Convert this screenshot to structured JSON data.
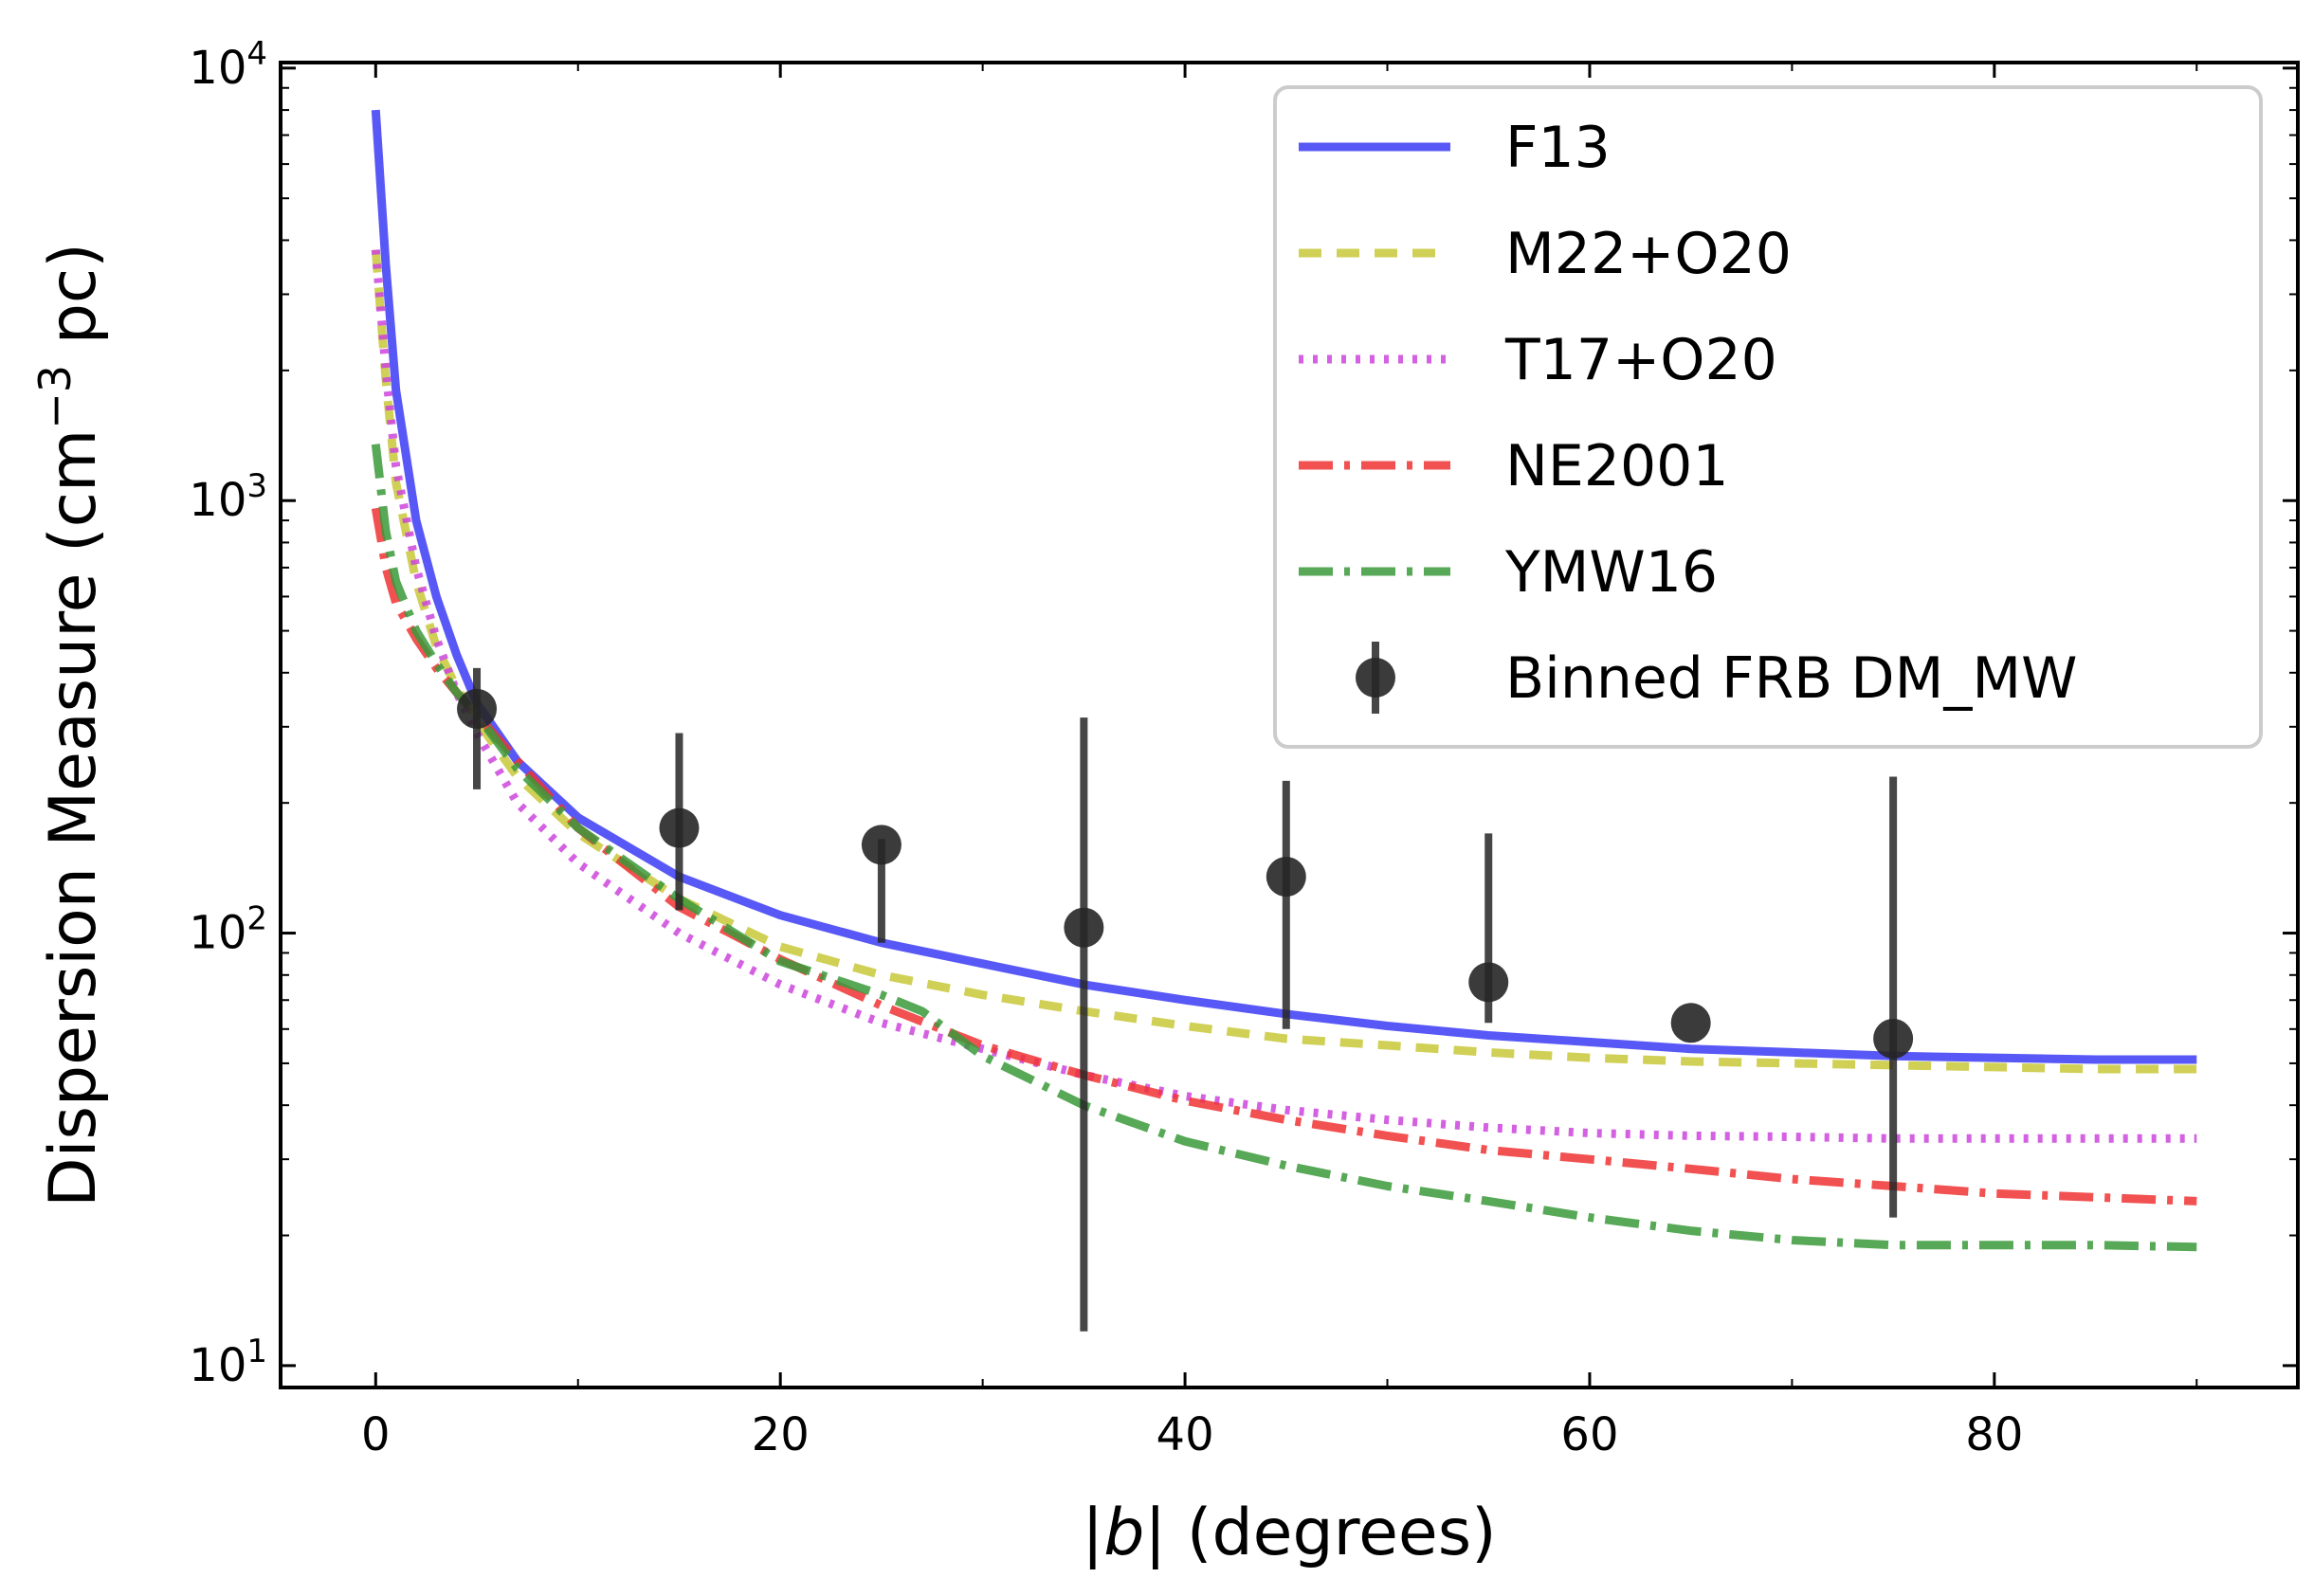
{
  "chart_data": {
    "type": "line",
    "title": "",
    "xlabel_prefix": "|",
    "xlabel_var": "b",
    "xlabel_suffix": "| (degrees)",
    "ylabel_main": "Dispersion Measure (cm",
    "ylabel_sup": "−3",
    "ylabel_tail": " pc)",
    "yscale": "log",
    "xlim": [
      -4.7,
      95
    ],
    "ylim": [
      8.9,
      10300
    ],
    "grid": false,
    "legend_position": "top-right",
    "x_ticks": [
      {
        "value": 0,
        "label": "0"
      },
      {
        "value": 20,
        "label": "20"
      },
      {
        "value": 40,
        "label": "40"
      },
      {
        "value": 60,
        "label": "60"
      },
      {
        "value": 80,
        "label": "80"
      }
    ],
    "y_ticks": [
      {
        "value": 10,
        "base": "10",
        "exp": "1"
      },
      {
        "value": 100,
        "base": "10",
        "exp": "2"
      },
      {
        "value": 1000,
        "base": "10",
        "exp": "3"
      },
      {
        "value": 10000,
        "base": "10",
        "exp": "4"
      }
    ],
    "series": [
      {
        "name": "F13",
        "color": "#3b3bf5",
        "dash": "",
        "opacity": 0.85,
        "x": [
          0,
          0.5,
          1,
          2,
          3,
          4,
          5,
          7,
          10,
          15,
          20,
          25,
          30,
          35,
          40,
          45,
          50,
          55,
          60,
          65,
          70,
          75,
          80,
          85,
          90
        ],
        "y": [
          8000,
          3500,
          1800,
          900,
          600,
          440,
          340,
          250,
          185,
          135,
          110,
          95,
          85,
          76,
          70,
          65,
          61,
          58,
          56,
          54,
          53,
          52,
          51.5,
          51,
          51
        ]
      },
      {
        "name": "M22+O20",
        "color": "#c8c83a",
        "dash": "24,16",
        "opacity": 0.85,
        "x": [
          0,
          0.5,
          1,
          2,
          3,
          4,
          5,
          7,
          10,
          15,
          20,
          25,
          30,
          35,
          40,
          45,
          50,
          55,
          60,
          65,
          70,
          75,
          80,
          85,
          90
        ],
        "y": [
          3800,
          1900,
          1100,
          650,
          460,
          370,
          310,
          230,
          170,
          120,
          93,
          80,
          72,
          66,
          61,
          57,
          55,
          53,
          51.5,
          50.5,
          50,
          49.5,
          49,
          48.5,
          48.5
        ]
      },
      {
        "name": "T17+O20",
        "color": "#cc44dd",
        "dash": "5,10",
        "opacity": 0.85,
        "x": [
          0,
          0.5,
          1,
          2,
          3,
          4,
          5,
          7,
          10,
          15,
          20,
          25,
          30,
          35,
          40,
          45,
          50,
          55,
          60,
          65,
          70,
          75,
          80,
          85,
          90
        ],
        "y": [
          3800,
          2000,
          1200,
          700,
          480,
          360,
          290,
          200,
          145,
          100,
          76,
          62,
          54,
          47,
          42,
          39,
          37,
          35.5,
          34.5,
          34,
          33.8,
          33.5,
          33.5,
          33.5,
          33.5
        ]
      },
      {
        "name": "NE2001",
        "color": "#f03333",
        "dash": "36,12,6,12",
        "opacity": 0.85,
        "x": [
          0,
          0.5,
          1,
          2,
          3,
          4,
          5,
          7,
          10,
          15,
          20,
          25,
          30,
          35,
          40,
          45,
          50,
          55,
          60,
          65,
          70,
          75,
          80,
          85,
          90
        ],
        "y": [
          960,
          700,
          580,
          480,
          410,
          360,
          320,
          250,
          175,
          115,
          87,
          68,
          55,
          47,
          41,
          37,
          34,
          31.5,
          30,
          28.5,
          27,
          26,
          25,
          24.5,
          24
        ]
      },
      {
        "name": "YMW16",
        "color": "#3a993a",
        "dash": "36,12,6,12",
        "opacity": 0.85,
        "x": [
          0,
          0.5,
          1,
          2,
          3,
          4,
          5,
          7,
          10,
          15,
          20,
          25,
          27,
          30,
          35,
          40,
          45,
          50,
          55,
          60,
          65,
          70,
          75,
          80,
          85,
          90
        ],
        "y": [
          1350,
          850,
          650,
          500,
          420,
          360,
          320,
          240,
          175,
          120,
          86,
          72,
          66,
          52,
          40,
          33,
          29,
          26,
          24,
          22,
          20.5,
          19.5,
          19,
          19,
          19,
          18.8
        ]
      }
    ],
    "errorbar_series": {
      "name": "Binned FRB DM_MW",
      "color": "#262626",
      "points": [
        {
          "x": 5,
          "y": 330,
          "ylow": 215,
          "yhigh": 410
        },
        {
          "x": 15,
          "y": 175,
          "ylow": 113,
          "yhigh": 290
        },
        {
          "x": 25,
          "y": 160,
          "ylow": 95,
          "yhigh": 165
        },
        {
          "x": 35,
          "y": 103,
          "ylow": 12,
          "yhigh": 315
        },
        {
          "x": 45,
          "y": 135,
          "ylow": 60,
          "yhigh": 225
        },
        {
          "x": 55,
          "y": 77,
          "ylow": 62,
          "yhigh": 170
        },
        {
          "x": 65,
          "y": 62,
          "ylow": 62,
          "yhigh": 62
        },
        {
          "x": 75,
          "y": 57,
          "ylow": 22,
          "yhigh": 230
        }
      ]
    }
  }
}
